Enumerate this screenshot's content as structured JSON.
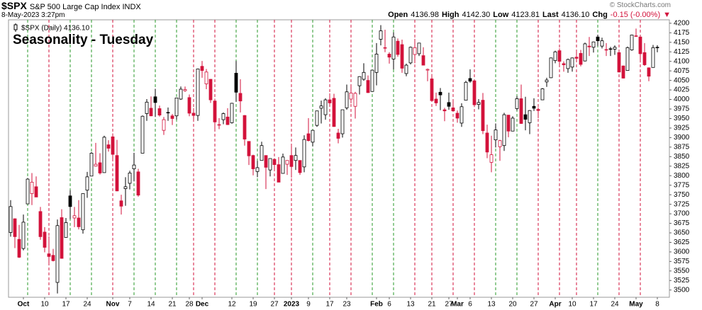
{
  "header": {
    "symbol": "$SPX",
    "name": "S&P 500 Large Cap Index INDX",
    "date": "8-May-2023 3:27pm",
    "copyright": "© StockCharts.com",
    "quote": [
      {
        "label": "Open",
        "value": "4136.98"
      },
      {
        "label": "High",
        "value": "4142.30"
      },
      {
        "label": "Low",
        "value": "4123.81"
      },
      {
        "label": "Last",
        "value": "4136.10"
      },
      {
        "label": "Chg",
        "value": "-0.15 (-0.00%)"
      }
    ],
    "change_arrow": "▼"
  },
  "chart_data": {
    "type": "candlestick",
    "title": "Seasonality - Tuesday",
    "ylim": [
      3481,
      4209
    ],
    "yticks": [
      3500,
      3525,
      3550,
      3575,
      3600,
      3625,
      3650,
      3675,
      3700,
      3725,
      3750,
      3775,
      3800,
      3825,
      3850,
      3875,
      3900,
      3925,
      3950,
      3975,
      4000,
      4025,
      4050,
      4075,
      4100,
      4125,
      4150,
      4175,
      4200
    ],
    "categories": [
      null,
      null,
      null,
      "Oct",
      null,
      null,
      null,
      null,
      "10",
      null,
      null,
      null,
      null,
      "17",
      null,
      null,
      null,
      null,
      "24",
      null,
      null,
      null,
      null,
      null,
      "Nov",
      null,
      null,
      null,
      "7",
      null,
      null,
      null,
      null,
      "14",
      null,
      null,
      null,
      null,
      "21",
      null,
      null,
      null,
      "28",
      null,
      null,
      "Dec",
      null,
      null,
      null,
      null,
      null,
      null,
      "12",
      null,
      null,
      null,
      null,
      "19",
      null,
      null,
      null,
      null,
      "27",
      null,
      null,
      null,
      "2023",
      null,
      null,
      null,
      "9",
      null,
      null,
      null,
      null,
      "17",
      null,
      null,
      null,
      "23",
      null,
      null,
      null,
      null,
      null,
      null,
      "Feb",
      null,
      null,
      "6",
      null,
      null,
      null,
      null,
      "13",
      null,
      null,
      null,
      null,
      "21",
      null,
      null,
      null,
      "27",
      null,
      "Mar",
      null,
      null,
      "6",
      null,
      null,
      null,
      null,
      "13",
      null,
      null,
      null,
      null,
      "20",
      null,
      null,
      null,
      null,
      "27",
      null,
      null,
      null,
      null,
      "Apr",
      null,
      null,
      null,
      "10",
      null,
      null,
      null,
      null,
      "17",
      null,
      null,
      null,
      null,
      "24",
      null,
      null,
      null,
      null,
      "May",
      null,
      null,
      null,
      null,
      "8"
    ],
    "series": [
      {
        "name": "$SPX (Daily) 4136.10",
        "up_color": "#000000",
        "down_color": "#d3123b",
        "open": [
          3651,
          3687,
          3633,
          3609,
          3726,
          3753,
          3771,
          3706,
          3652,
          3595,
          3591,
          3520,
          3690,
          3638,
          3747,
          3689,
          3689,
          3658,
          3762,
          3799,
          3825,
          3834,
          3808,
          3881,
          3902,
          3853,
          3734,
          3766,
          3780,
          3818,
          3810,
          3859,
          3963,
          3977,
          4007,
          3976,
          3919,
          3966,
          3957,
          3957,
          4001,
          4023,
          4005,
          3964,
          3958,
          4087,
          4041,
          4053,
          3996,
          3934,
          3947,
          3954,
          3939,
          4069,
          4016,
          3958,
          3890,
          3853,
          3811,
          3840,
          3853,
          3815,
          3843,
          3829,
          3806,
          3830,
          3853,
          3840,
          3840,
          3823,
          3910,
          3888,
          3932,
          3977,
          3960,
          3999,
          4003,
          3912,
          3910,
          3978,
          4001,
          3982,
          4036,
          4053,
          4050,
          4021,
          4071,
          4158,
          4136,
          4119,
          4106,
          4153,
          4144,
          4068,
          4096,
          4118,
          4120,
          4115,
          4077,
          4054,
          4001,
          4019,
          3973,
          3992,
          3978,
          3964,
          3938,
          3998,
          4055,
          4049,
          3987,
          3998,
          3912,
          3835,
          3894,
          3876,
          3879,
          3959,
          3917,
          3976,
          4002,
          3960,
          3939,
          3982,
          3974,
          3999,
          4046,
          4057,
          4102,
          4128,
          4094,
          4081,
          4085,
          4111,
          4121,
          4101,
          4140,
          4137,
          4164,
          4140,
          4131,
          4133,
          4132,
          4123,
          4088,
          4076,
          4130,
          4166,
          4164,
          4123,
          4083,
          4084,
          4136.98
        ],
        "high": [
          3736,
          3688,
          3671,
          3698,
          3794,
          3807,
          3798,
          3718,
          3665,
          3641,
          3608,
          3685,
          3712,
          3689,
          3762,
          3718,
          3736,
          3753,
          3810,
          3862,
          3886,
          3859,
          3905,
          3893,
          3911,
          3894,
          3750,
          3796,
          3813,
          3860,
          3818,
          3958,
          4001,
          4008,
          4028,
          3984,
          3954,
          3979,
          3962,
          4004,
          4034,
          4034,
          4013,
          3977,
          4081,
          4101,
          4080,
          4053,
          4002,
          3951,
          3966,
          3977,
          3991,
          4101,
          4053,
          3959,
          3890,
          3855,
          3839,
          3889,
          3853,
          3845,
          3846,
          3849,
          3858,
          3840,
          3878,
          3874,
          3840,
          3906,
          3951,
          3920,
          3970,
          3997,
          4003,
          4016,
          4015,
          3923,
          3973,
          4039,
          4033,
          4020,
          4061,
          4095,
          4063,
          4077,
          4148,
          4195,
          4183,
          4124,
          4176,
          4160,
          4157,
          4094,
          4139,
          4159,
          4148,
          4137,
          4081,
          4067,
          4018,
          4030,
          3978,
          4018,
          3994,
          3971,
          3990,
          4049,
          4079,
          4051,
          4001,
          4017,
          3934,
          3905,
          3937,
          3894,
          3965,
          3959,
          3956,
          4009,
          4039,
          4007,
          3972,
          4003,
          3979,
          4030,
          4057,
          4110,
          4128,
          4134,
          4100,
          4107,
          4110,
          4124,
          4130,
          4149,
          4164,
          4152,
          4170,
          4162,
          4148,
          4138,
          4142,
          4127,
          4089,
          4139,
          4170,
          4186,
          4165,
          4148,
          4084,
          4143,
          4142.3
        ],
        "low": [
          3640,
          3610,
          3584,
          3604,
          3726,
          3723,
          3744,
          3632,
          3599,
          3568,
          3575,
          3491,
          3583,
          3638,
          3686,
          3665,
          3659,
          3648,
          3742,
          3799,
          3824,
          3803,
          3808,
          3863,
          3843,
          3759,
          3698,
          3721,
          3764,
          3785,
          3745,
          3859,
          3944,
          3956,
          3954,
          3955,
          3907,
          3944,
          3933,
          3947,
          3999,
          4020,
          3956,
          3948,
          3944,
          4057,
          4027,
          3991,
          3918,
          3922,
          3935,
          3933,
          3937,
          3994,
          3966,
          3879,
          3828,
          3801,
          3796,
          3840,
          3765,
          3798,
          3813,
          3783,
          3806,
          3802,
          3795,
          3815,
          3802,
          3809,
          3890,
          3877,
          3928,
          3937,
          3947,
          3985,
          3928,
          3885,
          3900,
          3973,
          3990,
          3950,
          4013,
          4049,
          4017,
          4021,
          4037,
          4142,
          4124,
          4094,
          4079,
          4112,
          4070,
          4061,
          4092,
          4095,
          4114,
          4090,
          4048,
          3997,
          3983,
          3972,
          3943,
          3973,
          3968,
          3939,
          3928,
          3998,
          4044,
          3980,
          3974,
          3909,
          3846,
          3809,
          3874,
          3839,
          3865,
          3901,
          3917,
          3971,
          3936,
          3919,
          3909,
          3970,
          3951,
          3999,
          4033,
          4056,
          4095,
          4086,
          4073,
          4070,
          4073,
          4102,
          4087,
          4100,
          4114,
          4123,
          4140,
          4134,
          4114,
          4114,
          4117,
          4071,
          4055,
          4076,
          4128,
          4164,
          4097,
          4088,
          4048,
          4084,
          4123.81
        ],
        "close": [
          3719,
          3640,
          3586,
          3678,
          3791,
          3783,
          3744,
          3640,
          3612,
          3588,
          3577,
          3669,
          3583,
          3677,
          3719,
          3695,
          3666,
          3753,
          3797,
          3859,
          3830,
          3807,
          3901,
          3872,
          3856,
          3760,
          3720,
          3771,
          3807,
          3828,
          3749,
          3956,
          3993,
          3957,
          3992,
          3959,
          3947,
          3965,
          3950,
          4004,
          4027,
          4026,
          3964,
          3958,
          4080,
          4076,
          4072,
          3999,
          3941,
          3933,
          3963,
          3934,
          3990,
          4019,
          3996,
          3896,
          3852,
          3818,
          3821,
          3879,
          3822,
          3845,
          3829,
          3783,
          3849,
          3840,
          3824,
          3853,
          3808,
          3895,
          3892,
          3919,
          3970,
          3983,
          3999,
          3991,
          3929,
          3898,
          3973,
          4020,
          4017,
          4016,
          4060,
          4071,
          4018,
          4077,
          4119,
          4180,
          4136,
          4111,
          4164,
          4118,
          4082,
          4090,
          4137,
          4136,
          4148,
          4090,
          4079,
          3997,
          3991,
          4012,
          3970,
          3982,
          3970,
          3951,
          3981,
          4045,
          4048,
          3986,
          3992,
          3918,
          3862,
          3855,
          3920,
          3892,
          3960,
          3917,
          3951,
          4002,
          3937,
          3948,
          3971,
          3977,
          3971,
          4028,
          4051,
          4109,
          4125,
          4100,
          4091,
          4105,
          4109,
          4108,
          4092,
          4146,
          4138,
          4151,
          4154,
          4154,
          4130,
          4133,
          4137,
          4072,
          4056,
          4136,
          4169,
          4167,
          4120,
          4091,
          4061,
          4136,
          4136.1
        ]
      }
    ],
    "tuesdays": [
      4,
      9,
      14,
      19,
      24,
      29,
      34,
      39,
      43,
      48,
      53,
      58,
      62,
      66,
      71,
      75,
      80,
      85,
      90,
      95,
      99,
      104,
      109,
      114,
      119,
      124,
      129,
      133,
      138,
      143,
      148
    ],
    "tuesday_up_color": "#2a9a2a",
    "tuesday_down_color": "#d3123b",
    "title_color": "#1414d2"
  }
}
